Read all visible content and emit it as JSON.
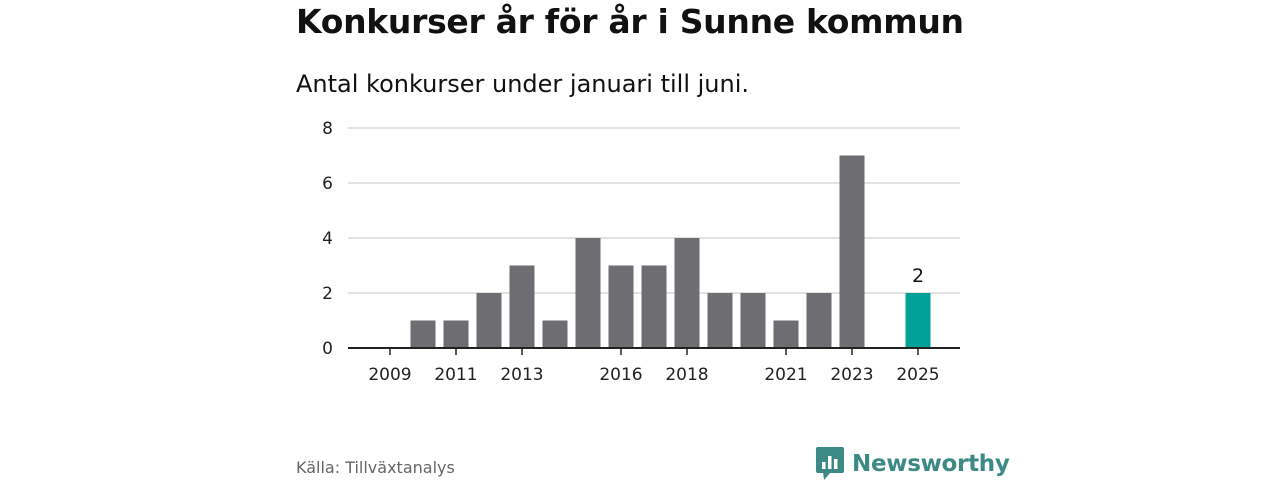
{
  "chart_data": {
    "type": "bar",
    "title": "Konkurser år för år i Sunne kommun",
    "subtitle": "Antal konkurser under januari till juni.",
    "categories": [
      "2009",
      "2010",
      "2011",
      "2012",
      "2013",
      "2014",
      "2015",
      "2016",
      "2017",
      "2018",
      "2019",
      "2020",
      "2021",
      "2022",
      "2023",
      "2024",
      "2025"
    ],
    "values": [
      0,
      1,
      1,
      2,
      3,
      1,
      4,
      3,
      3,
      4,
      2,
      2,
      1,
      2,
      7,
      0,
      2
    ],
    "x_tick_labels": [
      "2009",
      "2011",
      "2013",
      "2016",
      "2018",
      "2021",
      "2023",
      "2025"
    ],
    "y_ticks": [
      0,
      2,
      4,
      6,
      8
    ],
    "ylim": [
      0,
      8
    ],
    "grid": true,
    "highlight": {
      "category": "2025",
      "value_label": "2"
    },
    "colors": {
      "bar": "#6e6d72",
      "highlight": "#00a297",
      "grid": "#d9d9d9",
      "axis": "#222222"
    }
  },
  "footer": {
    "source": "Källa: Tillväxtanalys",
    "brand_name": "Newsworthy",
    "brand_icon": "bar-chart-speech-bubble-icon",
    "brand_color": "#3c8a85"
  }
}
